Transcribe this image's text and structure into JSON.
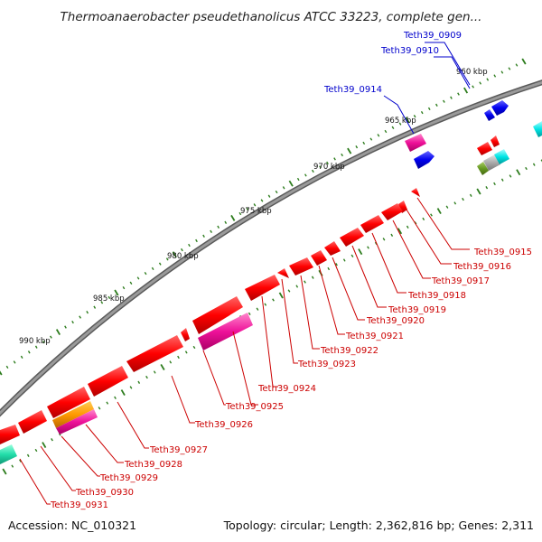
{
  "title": "Thermoanaerobacter pseudethanolicus ATCC 33223, complete gen...",
  "footer": {
    "accession": "Accession: NC_010321",
    "summary": "Topology: circular; Length: 2,362,816 bp; Genes: 2,311"
  },
  "colors": {
    "backbone": "#888888",
    "tick": "#2e7d1e",
    "forward_label": "#cc0000",
    "reverse_label": "#0000cc"
  },
  "ticks": [
    {
      "label": "960 kbp"
    },
    {
      "label": "965 kbp"
    },
    {
      "label": "970 kbp"
    },
    {
      "label": "975 kbp"
    },
    {
      "label": "980 kbp"
    },
    {
      "label": "985 kbp"
    },
    {
      "label": "990 kbp"
    }
  ],
  "labels_top": [
    {
      "text": "Teth39_0909",
      "color": "#0000cc"
    },
    {
      "text": "Teth39_0910",
      "color": "#0000cc"
    },
    {
      "text": "Teth39_0914",
      "color": "#0000cc"
    }
  ],
  "labels_bottom": [
    {
      "text": "Teth39_0915",
      "color": "#cc0000"
    },
    {
      "text": "Teth39_0916",
      "color": "#cc0000"
    },
    {
      "text": "Teth39_0917",
      "color": "#cc0000"
    },
    {
      "text": "Teth39_0918",
      "color": "#cc0000"
    },
    {
      "text": "Teth39_0919",
      "color": "#cc0000"
    },
    {
      "text": "Teth39_0920",
      "color": "#cc0000"
    },
    {
      "text": "Teth39_0921",
      "color": "#cc0000"
    },
    {
      "text": "Teth39_0922",
      "color": "#cc0000"
    },
    {
      "text": "Teth39_0923",
      "color": "#cc0000"
    },
    {
      "text": "Teth39_0924",
      "color": "#cc0000"
    },
    {
      "text": "Teth39_0925",
      "color": "#cc0000"
    },
    {
      "text": "Teth39_0926",
      "color": "#cc0000"
    },
    {
      "text": "Teth39_0927",
      "color": "#cc0000"
    },
    {
      "text": "Teth39_0928",
      "color": "#cc0000"
    },
    {
      "text": "Teth39_0929",
      "color": "#cc0000"
    },
    {
      "text": "Teth39_0930",
      "color": "#cc0000"
    },
    {
      "text": "Teth39_0931",
      "color": "#cc0000"
    }
  ]
}
